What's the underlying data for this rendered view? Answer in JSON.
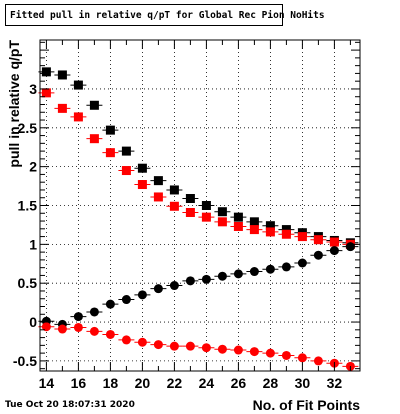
{
  "chart_data": {
    "type": "scatter",
    "title": "Fitted pull in relative q/pT for Global Rec Pion NoHits",
    "xlabel": "No. of Fit Points",
    "ylabel": "pull in relative q/pT",
    "xlim": [
      13.6,
      33.6
    ],
    "ylim": [
      -0.63,
      3.63
    ],
    "x_ticks": [
      14,
      16,
      18,
      20,
      22,
      24,
      26,
      28,
      30,
      32
    ],
    "y_ticks": [
      -0.5,
      0,
      0.5,
      1,
      1.5,
      2,
      2.5,
      3
    ],
    "y_tick_labels": [
      "-0.5",
      "0",
      "0.5",
      "1",
      "1.5",
      "2",
      "2.5",
      "3"
    ],
    "grid": true,
    "x": [
      14,
      15,
      16,
      17,
      18,
      19,
      20,
      21,
      22,
      23,
      24,
      25,
      26,
      27,
      28,
      29,
      30,
      31,
      32,
      33
    ],
    "series": [
      {
        "marker": "square",
        "color": "#000000",
        "values": [
          3.22,
          3.18,
          3.05,
          2.79,
          2.47,
          2.2,
          1.98,
          1.82,
          1.7,
          1.59,
          1.5,
          1.42,
          1.35,
          1.29,
          1.24,
          1.19,
          1.15,
          1.1,
          1.05,
          1.02
        ]
      },
      {
        "marker": "square",
        "color": "#ff0000",
        "values": [
          2.95,
          2.75,
          2.64,
          2.36,
          2.18,
          1.95,
          1.77,
          1.61,
          1.49,
          1.41,
          1.35,
          1.29,
          1.23,
          1.19,
          1.16,
          1.13,
          1.1,
          1.06,
          1.03,
          1.0
        ]
      },
      {
        "marker": "circle",
        "color": "#000000",
        "values": [
          0.01,
          -0.03,
          0.07,
          0.13,
          0.23,
          0.29,
          0.35,
          0.43,
          0.47,
          0.53,
          0.55,
          0.59,
          0.62,
          0.65,
          0.68,
          0.71,
          0.76,
          0.86,
          0.92,
          0.97
        ]
      },
      {
        "marker": "circle",
        "color": "#ff0000",
        "values": [
          -0.06,
          -0.09,
          -0.07,
          -0.12,
          -0.16,
          -0.23,
          -0.26,
          -0.29,
          -0.31,
          -0.31,
          -0.33,
          -0.35,
          -0.36,
          -0.38,
          -0.4,
          -0.43,
          -0.46,
          -0.5,
          -0.53,
          -0.57
        ]
      }
    ]
  },
  "footer": {
    "datestamp": "Tue Oct 20 18:07:31 2020"
  }
}
